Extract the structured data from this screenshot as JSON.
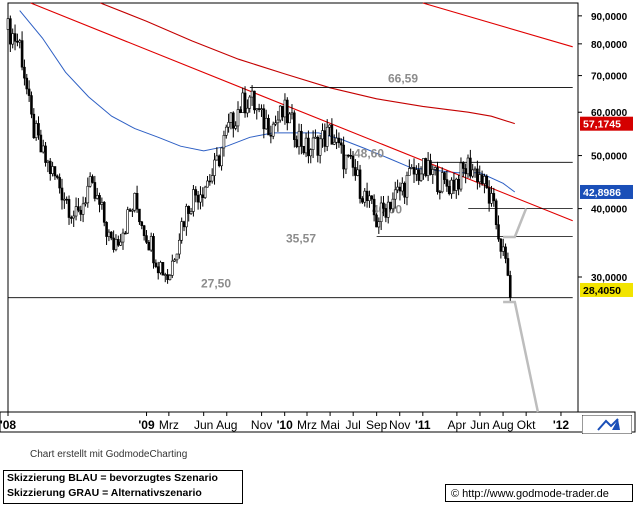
{
  "chart_data": {
    "type": "candlestick",
    "y_scale": "log",
    "ylim": [
      17,
      95
    ],
    "x_range": [
      "2008-01",
      "2012-02"
    ],
    "y_ticks": [
      {
        "value": 90,
        "label": "90,0000"
      },
      {
        "value": 80,
        "label": "80,0000"
      },
      {
        "value": 70,
        "label": "70,0000"
      },
      {
        "value": 60,
        "label": "60,0000"
      },
      {
        "value": 50,
        "label": "50,0000"
      },
      {
        "value": 40,
        "label": "40,0000"
      },
      {
        "value": 30,
        "label": "30,0000"
      }
    ],
    "x_ticks": [
      {
        "date": "2008-01",
        "label": "'08",
        "bold": true
      },
      {
        "date": "2009-01",
        "label": "'09",
        "bold": true
      },
      {
        "date": "2009-03",
        "label": "Mrz",
        "bold": false
      },
      {
        "date": "2009-06",
        "label": "Jun",
        "bold": false
      },
      {
        "date": "2009-08",
        "label": "Aug",
        "bold": false
      },
      {
        "date": "2009-11",
        "label": "Nov",
        "bold": false
      },
      {
        "date": "2010-01",
        "label": "'10",
        "bold": true
      },
      {
        "date": "2010-03",
        "label": "Mrz",
        "bold": false
      },
      {
        "date": "2010-05",
        "label": "Mai",
        "bold": false
      },
      {
        "date": "2010-07",
        "label": "Jul",
        "bold": false
      },
      {
        "date": "2010-09",
        "label": "Sep",
        "bold": false
      },
      {
        "date": "2010-11",
        "label": "Nov",
        "bold": false
      },
      {
        "date": "2011-01",
        "label": "'11",
        "bold": true
      },
      {
        "date": "2011-04",
        "label": "Apr",
        "bold": false
      },
      {
        "date": "2011-06",
        "label": "Jun",
        "bold": false
      },
      {
        "date": "2011-08",
        "label": "Aug",
        "bold": false
      },
      {
        "date": "2011-10",
        "label": "Okt",
        "bold": false
      },
      {
        "date": "2012-01",
        "label": "'12",
        "bold": true
      }
    ],
    "price_path": [
      [
        "2008-01",
        85
      ],
      [
        "2008-02",
        80
      ],
      [
        "2008-03",
        58
      ],
      [
        "2008-04",
        50
      ],
      [
        "2008-05",
        46
      ],
      [
        "2008-06",
        42
      ],
      [
        "2008-07",
        38
      ],
      [
        "2008-08",
        44
      ],
      [
        "2008-09",
        40
      ],
      [
        "2008-10",
        34
      ],
      [
        "2008-11",
        37
      ],
      [
        "2008-12",
        41
      ],
      [
        "2009-01",
        36
      ],
      [
        "2009-02",
        32
      ],
      [
        "2009-03",
        30
      ],
      [
        "2009-04",
        37
      ],
      [
        "2009-05",
        42
      ],
      [
        "2009-06",
        44
      ],
      [
        "2009-07",
        47
      ],
      [
        "2009-08",
        55
      ],
      [
        "2009-09",
        61
      ],
      [
        "2009-10",
        64
      ],
      [
        "2009-11",
        58
      ],
      [
        "2009-12",
        57
      ],
      [
        "2010-01",
        60
      ],
      [
        "2010-02",
        55
      ],
      [
        "2010-03",
        51
      ],
      [
        "2010-04",
        53
      ],
      [
        "2010-05",
        55
      ],
      [
        "2010-06",
        50
      ],
      [
        "2010-07",
        47
      ],
      [
        "2010-08",
        42
      ],
      [
        "2010-09",
        38
      ],
      [
        "2010-10",
        41
      ],
      [
        "2010-11",
        43
      ],
      [
        "2010-12",
        46
      ],
      [
        "2011-01",
        47
      ],
      [
        "2011-02",
        46
      ],
      [
        "2011-03",
        44
      ],
      [
        "2011-04",
        45
      ],
      [
        "2011-05",
        48
      ],
      [
        "2011-06",
        46
      ],
      [
        "2011-07",
        41
      ],
      [
        "2011-08",
        33
      ],
      [
        "2011-08-20",
        28.4
      ]
    ],
    "moving_average_blue": [
      [
        "2008-02",
        92
      ],
      [
        "2008-04",
        82
      ],
      [
        "2008-06",
        71
      ],
      [
        "2008-08",
        64
      ],
      [
        "2008-10",
        59
      ],
      [
        "2008-12",
        56
      ],
      [
        "2009-02",
        54
      ],
      [
        "2009-04",
        52
      ],
      [
        "2009-06",
        51
      ],
      [
        "2009-08",
        52
      ],
      [
        "2009-10",
        54
      ],
      [
        "2009-12",
        55
      ],
      [
        "2010-02",
        55
      ],
      [
        "2010-04",
        55
      ],
      [
        "2010-06",
        53.5
      ],
      [
        "2010-08",
        51.5
      ],
      [
        "2010-10",
        49.5
      ],
      [
        "2010-12",
        47.5
      ],
      [
        "2011-02",
        47
      ],
      [
        "2011-04",
        46.5
      ],
      [
        "2011-06",
        46.5
      ],
      [
        "2011-08",
        44.5
      ],
      [
        "2011-09",
        42.9
      ]
    ],
    "moving_average_red": [
      [
        "2008-09",
        95
      ],
      [
        "2009-01",
        88
      ],
      [
        "2009-05",
        81
      ],
      [
        "2009-09",
        75
      ],
      [
        "2010-01",
        70.5
      ],
      [
        "2010-05",
        66.5
      ],
      [
        "2010-09",
        63.5
      ],
      [
        "2011-01",
        61.5
      ],
      [
        "2011-05",
        60
      ],
      [
        "2011-07",
        59
      ],
      [
        "2011-09",
        57.2
      ]
    ],
    "trendlines_red": [
      {
        "from": [
          "2008-03",
          95
        ],
        "to": [
          "2012-02",
          38
        ]
      },
      {
        "from": [
          "2011-01",
          95
        ],
        "to": [
          "2012-02",
          79
        ]
      }
    ],
    "horizontal_levels": [
      {
        "value": 66.59,
        "label": "66,59",
        "from": "2009-10",
        "to": "2012-02"
      },
      {
        "value": 48.6,
        "label": "48,60",
        "from": "2011-01",
        "to": "2012-02"
      },
      {
        "value": 40.0,
        "label": "40,00",
        "from": "2011-05",
        "to": "2012-02"
      },
      {
        "value": 35.57,
        "label": "35,57",
        "from": "2010-09",
        "to": "2012-02"
      },
      {
        "value": 27.5,
        "label": "27,50",
        "from": "2008-01",
        "to": "2012-02"
      }
    ],
    "scenario_grey": [
      [
        "2011-08",
        35.5
      ],
      [
        "2011-09",
        35.5
      ],
      [
        "2011-10",
        40
      ],
      [
        "2011-08",
        27
      ],
      [
        "2011-09",
        27
      ],
      [
        "2011-11",
        17
      ]
    ],
    "price_badges": [
      {
        "value": 57.1745,
        "label": "57,1745",
        "color": "#d40000"
      },
      {
        "value": 42.8986,
        "label": "42,8986",
        "color": "#1a4fb8"
      },
      {
        "value": 28.405,
        "label": "28,4050",
        "color": "#f2e400"
      }
    ],
    "colors": {
      "candles": "#000000",
      "ma_blue": "#2d5fc4",
      "ma_red": "#c40000",
      "trend_red": "#e00000",
      "levels": "#000000",
      "level_labels": "#8c8c8c",
      "scenario": "#bdbdbd",
      "grid": "#d8d8d8"
    }
  },
  "footer": {
    "credit": "Chart erstellt mit GodmodeCharting",
    "legend_blue": "Skizzierung BLAU = bevorzugtes Szenario",
    "legend_grey": "Skizzierung GRAU = Alternativszenario",
    "source": "© http://www.godmode-trader.de"
  }
}
